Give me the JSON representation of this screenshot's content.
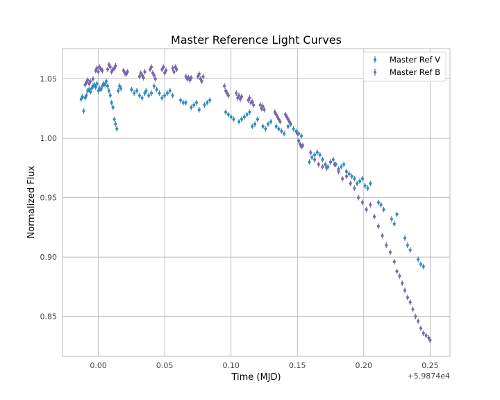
{
  "chart_data": {
    "type": "scatter",
    "title": "Master Reference Light Curves",
    "xlabel": "Time (MJD)",
    "ylabel": "Normalized Flux",
    "x_offset_label": "+5.9874e4",
    "xlim": [
      -0.027,
      0.265
    ],
    "ylim": [
      0.8165,
      1.0755
    ],
    "xticks": [
      0.0,
      0.05,
      0.1,
      0.15,
      0.2,
      0.25
    ],
    "xtick_labels": [
      "0.00",
      "0.05",
      "0.10",
      "0.15",
      "0.20",
      "0.25"
    ],
    "yticks": [
      0.85,
      0.9,
      0.95,
      1.0,
      1.05
    ],
    "ytick_labels": [
      "0.85",
      "0.90",
      "0.95",
      "1.00",
      "1.05"
    ],
    "grid": true,
    "legend_position": "top-right",
    "series": [
      {
        "name": "Master Ref V",
        "color": "#348ABD",
        "errorbars": true,
        "x": [
          -0.013,
          -0.012,
          -0.011,
          -0.01,
          -0.009,
          -0.008,
          -0.007,
          -0.006,
          -0.005,
          -0.004,
          -0.003,
          -0.002,
          -0.001,
          0.0,
          0.001,
          0.002,
          0.003,
          0.004,
          0.005,
          0.006,
          0.007,
          0.008,
          0.009,
          0.01,
          0.011,
          0.012,
          0.013,
          0.014,
          0.015,
          0.016,
          0.017,
          0.025,
          0.027,
          0.029,
          0.031,
          0.033,
          0.035,
          0.036,
          0.038,
          0.04,
          0.042,
          0.044,
          0.046,
          0.048,
          0.05,
          0.052,
          0.054,
          0.056,
          0.062,
          0.064,
          0.066,
          0.07,
          0.072,
          0.074,
          0.076,
          0.08,
          0.082,
          0.084,
          0.096,
          0.098,
          0.1,
          0.102,
          0.106,
          0.108,
          0.11,
          0.112,
          0.114,
          0.116,
          0.118,
          0.12,
          0.124,
          0.126,
          0.128,
          0.13,
          0.134,
          0.136,
          0.138,
          0.14,
          0.143,
          0.145,
          0.147,
          0.149,
          0.151,
          0.153,
          0.159,
          0.161,
          0.163,
          0.165,
          0.167,
          0.169,
          0.171,
          0.173,
          0.175,
          0.177,
          0.179,
          0.181,
          0.183,
          0.185,
          0.187,
          0.189,
          0.191,
          0.193,
          0.195,
          0.197,
          0.199,
          0.201,
          0.203,
          0.205,
          0.211,
          0.213,
          0.215,
          0.221,
          0.223,
          0.225,
          0.231,
          0.233,
          0.235,
          0.241,
          0.243,
          0.245
        ],
        "y": [
          1.033,
          1.035,
          1.023,
          1.034,
          1.036,
          1.04,
          1.041,
          1.039,
          1.042,
          1.044,
          1.045,
          1.043,
          1.046,
          1.04,
          1.042,
          1.041,
          1.044,
          1.046,
          1.045,
          1.048,
          1.044,
          1.04,
          1.036,
          1.03,
          1.026,
          1.016,
          1.012,
          1.008,
          1.04,
          1.044,
          1.042,
          1.041,
          1.038,
          1.04,
          1.036,
          1.034,
          1.038,
          1.04,
          1.036,
          1.038,
          1.044,
          1.041,
          1.038,
          1.034,
          1.036,
          1.038,
          1.04,
          1.036,
          1.032,
          1.03,
          1.03,
          1.026,
          1.028,
          1.03,
          1.024,
          1.028,
          1.03,
          1.032,
          1.022,
          1.02,
          1.018,
          1.016,
          1.014,
          1.016,
          1.018,
          1.02,
          1.022,
          1.01,
          1.012,
          1.016,
          1.01,
          1.008,
          1.012,
          1.014,
          1.01,
          1.008,
          1.006,
          1.004,
          1.01,
          1.012,
          1.008,
          1.006,
          1.004,
          1.002,
          0.98,
          0.984,
          0.986,
          0.988,
          0.986,
          0.982,
          0.978,
          0.976,
          0.98,
          0.982,
          0.978,
          0.974,
          0.976,
          0.978,
          0.972,
          0.97,
          0.968,
          0.966,
          0.962,
          0.964,
          0.966,
          0.96,
          0.958,
          0.962,
          0.946,
          0.944,
          0.94,
          0.932,
          0.928,
          0.936,
          0.916,
          0.91,
          0.906,
          0.898,
          0.894,
          0.892
        ]
      },
      {
        "name": "Master Ref B",
        "color": "#7A68A6",
        "errorbars": true,
        "x": [
          -0.01,
          -0.009,
          -0.008,
          -0.007,
          -0.006,
          -0.004,
          -0.002,
          -0.001,
          0.0,
          0.001,
          0.002,
          0.003,
          0.007,
          0.008,
          0.009,
          0.01,
          0.011,
          0.012,
          0.013,
          0.019,
          0.02,
          0.021,
          0.022,
          0.031,
          0.032,
          0.033,
          0.034,
          0.035,
          0.039,
          0.04,
          0.041,
          0.042,
          0.043,
          0.048,
          0.049,
          0.05,
          0.051,
          0.056,
          0.057,
          0.058,
          0.059,
          0.066,
          0.067,
          0.068,
          0.069,
          0.07,
          0.075,
          0.076,
          0.077,
          0.078,
          0.079,
          0.095,
          0.096,
          0.097,
          0.098,
          0.104,
          0.105,
          0.106,
          0.107,
          0.108,
          0.113,
          0.114,
          0.115,
          0.116,
          0.117,
          0.122,
          0.123,
          0.124,
          0.125,
          0.133,
          0.134,
          0.135,
          0.136,
          0.137,
          0.141,
          0.142,
          0.143,
          0.144,
          0.145,
          0.15,
          0.151,
          0.152,
          0.153,
          0.154,
          0.16,
          0.163,
          0.166,
          0.169,
          0.172,
          0.175,
          0.178,
          0.181,
          0.184,
          0.187,
          0.19,
          0.193,
          0.196,
          0.199,
          0.202,
          0.205,
          0.208,
          0.211,
          0.214,
          0.217,
          0.22,
          0.223,
          0.225,
          0.227,
          0.229,
          0.231,
          0.233,
          0.235,
          0.237,
          0.239,
          0.241,
          0.243,
          0.245,
          0.247,
          0.249,
          0.25
        ],
        "y": [
          1.045,
          1.047,
          1.049,
          1.046,
          1.048,
          1.05,
          1.057,
          1.059,
          1.056,
          1.06,
          1.058,
          1.057,
          1.058,
          1.062,
          1.06,
          1.056,
          1.058,
          1.059,
          1.061,
          1.057,
          1.055,
          1.054,
          1.056,
          1.052,
          1.055,
          1.053,
          1.051,
          1.056,
          1.058,
          1.06,
          1.055,
          1.053,
          1.05,
          1.058,
          1.06,
          1.055,
          1.057,
          1.059,
          1.056,
          1.06,
          1.058,
          1.052,
          1.05,
          1.051,
          1.049,
          1.051,
          1.052,
          1.054,
          1.05,
          1.048,
          1.052,
          1.044,
          1.04,
          1.038,
          1.036,
          1.038,
          1.034,
          1.036,
          1.033,
          1.035,
          1.032,
          1.034,
          1.03,
          1.031,
          1.028,
          1.028,
          1.025,
          1.027,
          1.024,
          1.022,
          1.02,
          1.018,
          1.016,
          1.014,
          1.02,
          1.018,
          1.016,
          1.014,
          1.012,
          1.004,
          0.998,
          0.995,
          0.993,
          0.994,
          0.988,
          0.982,
          0.978,
          0.976,
          0.975,
          0.98,
          0.978,
          0.972,
          0.966,
          0.968,
          0.962,
          0.958,
          0.95,
          0.946,
          0.94,
          0.944,
          0.934,
          0.926,
          0.918,
          0.91,
          0.904,
          0.896,
          0.888,
          0.884,
          0.878,
          0.872,
          0.866,
          0.862,
          0.856,
          0.85,
          0.846,
          0.84,
          0.836,
          0.834,
          0.832,
          0.83
        ]
      }
    ]
  }
}
